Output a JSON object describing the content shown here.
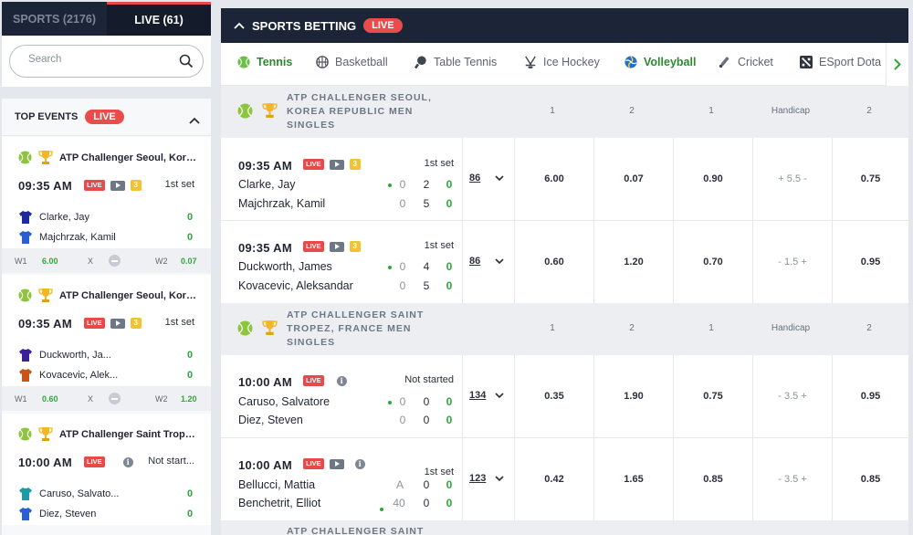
{
  "left_tabs": {
    "sports": "SPORTS (2176)",
    "live": "LIVE (61)"
  },
  "search": {
    "placeholder": "Search"
  },
  "top_events": {
    "title": "TOP EVENTS",
    "live": "LIVE",
    "events": [
      {
        "league": "ATP Challenger Seoul, Korea...",
        "time": "09:35 AM",
        "live": "LIVE",
        "count": "3",
        "status": "1st set",
        "p1": "Clarke, Jay",
        "p1_score": "0",
        "p2": "Majchrzak, Kamil",
        "p2_score": "0",
        "w1_label": "W1",
        "w1": "6.00",
        "x_label": "X",
        "w2_label": "W2",
        "w2": "0.07"
      },
      {
        "league": "ATP Challenger Seoul, Korea...",
        "time": "09:35 AM",
        "live": "LIVE",
        "count": "3",
        "status": "1st set",
        "p1": "Duckworth, Ja...",
        "p1_score": "0",
        "p2": "Kovacevic, Alek...",
        "p2_score": "0",
        "w1_label": "W1",
        "w1": "0.60",
        "x_label": "X",
        "w2_label": "W2",
        "w2": "1.20"
      },
      {
        "league": "ATP Challenger Saint Tropez...",
        "time": "10:00 AM",
        "live": "LIVE",
        "info": "i",
        "status": "Not start...",
        "p1": "Caruso, Salvato...",
        "p1_score": "0",
        "p2": "Diez, Steven",
        "p2_score": "0"
      }
    ]
  },
  "main": {
    "title": "SPORTS BETTING",
    "live": "LIVE",
    "sports": [
      "Tennis",
      "Basketball",
      "Table Tennis",
      "Ice Hockey",
      "Volleyball",
      "Cricket",
      "ESport Dota"
    ],
    "col_headers": [
      "1",
      "2",
      "1",
      "Handicap",
      "2"
    ],
    "leagues": [
      {
        "name": "ATP CHALLENGER SEOUL, KOREA REPUBLIC MEN SINGLES",
        "matches": [
          {
            "time": "09:35 AM",
            "live": "LIVE",
            "count": "3",
            "status": "1st set",
            "p1": "Clarke, Jay",
            "p1_s": [
              "0",
              "2",
              "0"
            ],
            "p2": "Majchrzak, Kamil",
            "p2_s": [
              "0",
              "5",
              "0"
            ],
            "more": "86",
            "odds": [
              "6.00",
              "0.07",
              "0.90",
              "+ 5.5 -",
              "0.75"
            ]
          },
          {
            "time": "09:35 AM",
            "live": "LIVE",
            "count": "3",
            "status": "1st set",
            "p1": "Duckworth, James",
            "p1_s": [
              "0",
              "4",
              "0"
            ],
            "p2": "Kovacevic, Aleksandar",
            "p2_s": [
              "0",
              "5",
              "0"
            ],
            "more": "86",
            "odds": [
              "0.60",
              "1.20",
              "0.70",
              "- 1.5 +",
              "0.95"
            ]
          }
        ]
      },
      {
        "name": "ATP CHALLENGER SAINT TROPEZ, FRANCE MEN SINGLES",
        "matches": [
          {
            "time": "10:00 AM",
            "live": "LIVE",
            "info": "i",
            "status": "Not started",
            "p1": "Caruso, Salvatore",
            "p1_s": [
              "0",
              "0",
              "0"
            ],
            "p2": "Diez, Steven",
            "p2_s": [
              "0",
              "0",
              "0"
            ],
            "more": "134",
            "odds": [
              "0.35",
              "1.90",
              "0.75",
              "- 3.5 +",
              "0.95"
            ]
          },
          {
            "time": "10:00 AM",
            "live": "LIVE",
            "info": "i",
            "status": "1st set",
            "p1": "Bellucci, Mattia",
            "p1_s": [
              "A",
              "0",
              "0"
            ],
            "p2": "Benchetrit, Elliot",
            "p2_s": [
              "40",
              "0",
              "0"
            ],
            "more": "123",
            "odds": [
              "0.42",
              "1.65",
              "0.85",
              "- 3.5 +",
              "0.85"
            ]
          }
        ]
      },
      {
        "name": "ATP CHALLENGER SAINT"
      }
    ]
  },
  "colors": {
    "accent_green": "#2fa83a",
    "live_red": "#ea4c4c",
    "header_dark": "#1c2537"
  }
}
